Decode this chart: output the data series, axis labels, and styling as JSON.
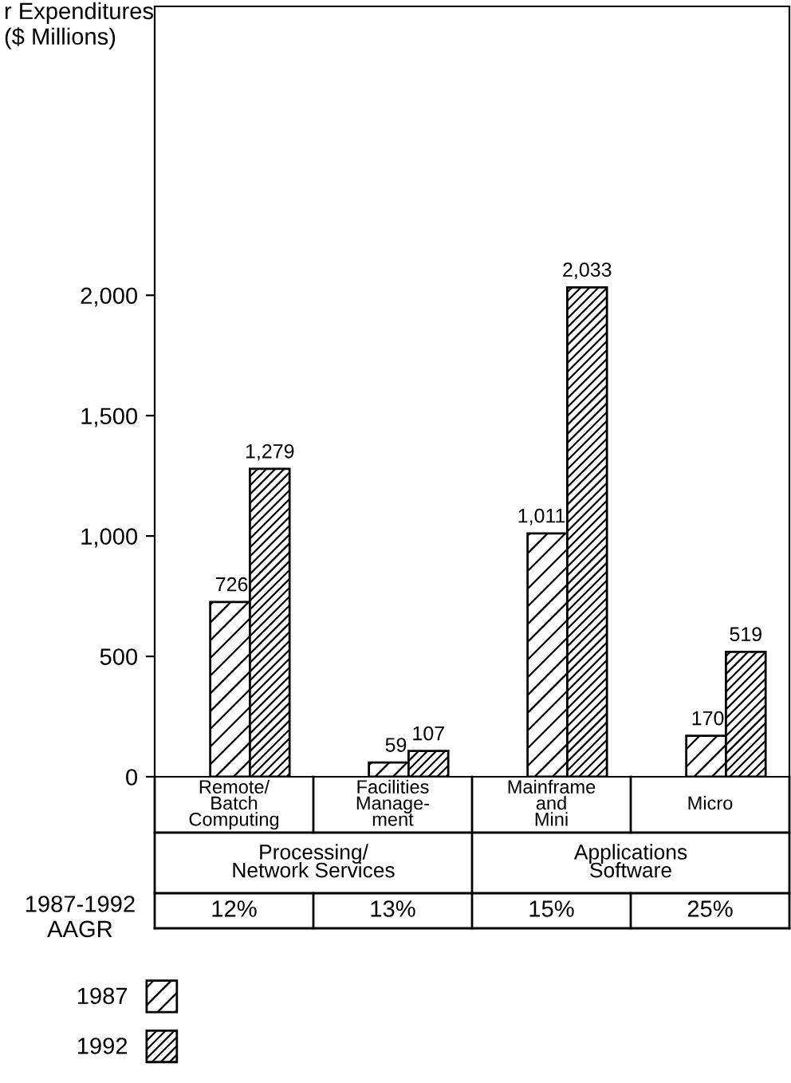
{
  "chart_data": {
    "type": "bar",
    "ylabel": "r Expenditures\n($ Millions)",
    "categories": [
      "Remote/\nBatch\nComputing",
      "Facilities\nManage-\nment",
      "Mainframe\nand\nMini",
      "Micro"
    ],
    "series": [
      {
        "name": "1987",
        "color": "#000000",
        "values": [
          726,
          59,
          1011,
          170
        ],
        "value_labels": [
          "726",
          "59",
          "1,011",
          "170"
        ]
      },
      {
        "name": "1992",
        "color": "#000000",
        "values": [
          1279,
          107,
          2033,
          519
        ],
        "value_labels": [
          "1,279",
          "107",
          "2,033",
          "519"
        ]
      }
    ],
    "ylim": [
      0,
      3200
    ],
    "yticks": [
      0,
      {
        "value": 500,
        "label": "500"
      },
      {
        "value": 1000,
        "label": "1,000"
      },
      {
        "value": 1500,
        "label": "1,500"
      },
      {
        "value": 2000,
        "label": "2,000"
      }
    ],
    "annotations": [
      "Processing/\nNetwork Services",
      "Applications\nSoftware",
      "1987-1992\nAAGR",
      "12%",
      "13%",
      "15%",
      "25%"
    ],
    "legend": "bottom left",
    "grid": false
  }
}
